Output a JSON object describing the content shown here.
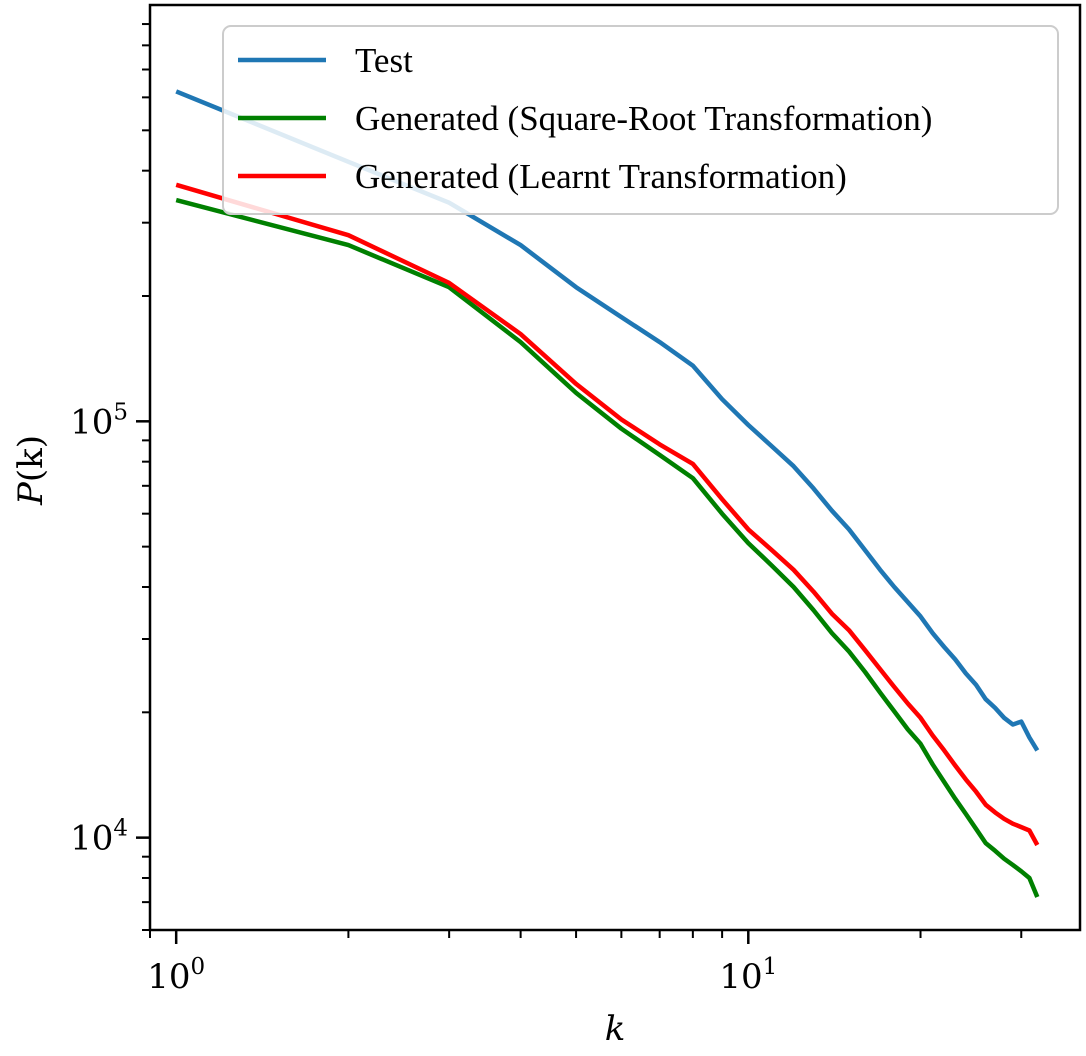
{
  "chart_data": {
    "type": "line",
    "xscale": "log",
    "yscale": "log",
    "xlim": [
      0.9,
      38
    ],
    "ylim": [
      6000,
      1000000
    ],
    "xlabel_prefix": "k",
    "ylabel_prefix": "P",
    "ylabel_paren": "(k)",
    "x_ticks": [
      {
        "base": "10",
        "exp": "0",
        "value": 1
      },
      {
        "base": "10",
        "exp": "1",
        "value": 10
      }
    ],
    "y_ticks": [
      {
        "base": "10",
        "exp": "4",
        "value": 10000
      },
      {
        "base": "10",
        "exp": "5",
        "value": 100000
      }
    ],
    "legend_position": "top-right",
    "grid": false,
    "x": [
      1,
      2,
      3,
      4,
      5,
      6,
      7,
      8,
      9,
      10,
      11,
      12,
      13,
      14,
      15,
      16,
      17,
      18,
      19,
      20,
      21,
      22,
      23,
      24,
      25,
      26,
      27,
      28,
      29,
      30,
      31,
      32
    ],
    "series": [
      {
        "name": "Test",
        "color": "#1f77b4",
        "values": [
          620000,
          420000,
          335000,
          265000,
          210000,
          178000,
          155000,
          136000,
          113000,
          98000,
          87000,
          78000,
          69000,
          61000,
          55000,
          49000,
          44000,
          40000,
          36800,
          34000,
          31000,
          28700,
          26800,
          24800,
          23300,
          21500,
          20500,
          19400,
          18700,
          19000,
          17400,
          16200
        ]
      },
      {
        "name": "Generated (Square-Root Transformation)",
        "color": "#008000",
        "values": [
          340000,
          265000,
          210000,
          155000,
          117000,
          96000,
          83000,
          73000,
          60000,
          51000,
          45000,
          40000,
          35200,
          31000,
          28000,
          25000,
          22300,
          20100,
          18200,
          16800,
          15000,
          13600,
          12400,
          11400,
          10500,
          9700,
          9300,
          8900,
          8600,
          8300,
          8000,
          7200
        ]
      },
      {
        "name": "Generated (Learnt Transformation)",
        "color": "#ff0000",
        "values": [
          370000,
          280000,
          215000,
          162000,
          123000,
          101000,
          88000,
          79000,
          65000,
          55000,
          49000,
          44000,
          39000,
          34500,
          31500,
          28200,
          25400,
          23000,
          21000,
          19400,
          17600,
          16200,
          14900,
          13800,
          12900,
          12000,
          11500,
          11100,
          10800,
          10600,
          10400,
          9600
        ]
      }
    ]
  }
}
